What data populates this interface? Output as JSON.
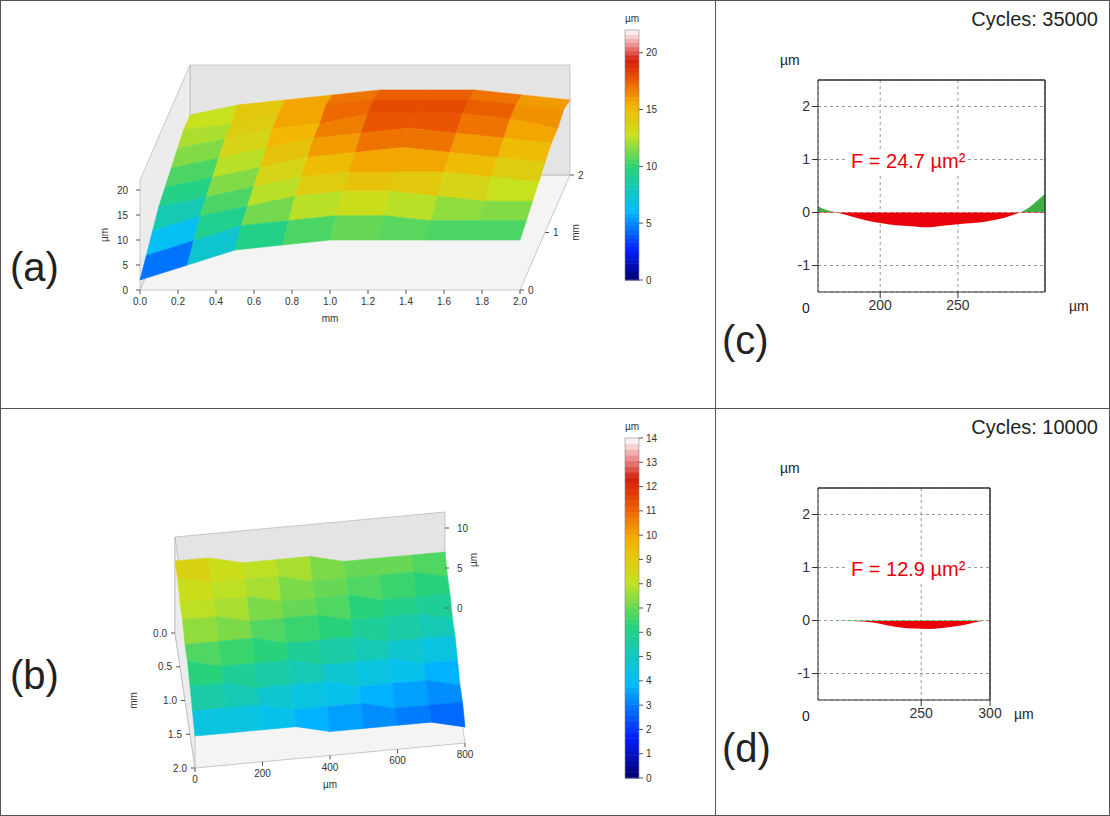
{
  "chart_data": [
    {
      "type": "surface",
      "panel": "(a)",
      "x_label": "mm",
      "y_label": "mm",
      "z_label": "µm",
      "x": [
        0,
        0.25,
        0.5,
        0.75,
        1,
        1.25,
        1.5,
        1.75,
        2
      ],
      "y": [
        0,
        0.25,
        0.5,
        0.75,
        1,
        1.25,
        1.5,
        1.75,
        2
      ],
      "cells": [
        [
          2,
          5,
          8,
          9,
          10,
          10,
          10,
          10,
          10
        ],
        [
          4,
          7,
          10,
          11,
          12,
          12,
          11,
          11,
          11
        ],
        [
          6,
          9,
          11,
          13,
          14,
          14,
          13,
          12,
          12
        ],
        [
          8,
          10,
          12,
          14,
          15,
          15,
          15,
          14,
          13
        ],
        [
          9,
          11,
          13,
          15,
          16,
          17,
          16,
          15,
          14
        ],
        [
          10,
          12,
          14,
          16,
          17,
          18,
          17,
          16,
          15
        ],
        [
          11,
          13,
          15,
          16,
          18,
          18,
          18,
          17,
          15
        ],
        [
          12,
          13,
          15,
          17,
          18,
          18,
          18,
          17,
          16
        ],
        [
          12,
          14,
          15,
          16,
          17,
          17,
          17,
          16,
          15
        ]
      ],
      "xlim": [
        0,
        2
      ],
      "xticks": [
        {
          "value": 0,
          "label": "0.0"
        },
        0.2,
        0.4,
        0.6,
        0.8,
        {
          "value": 1,
          "label": "1.0"
        },
        1.2,
        1.4,
        1.6,
        1.8,
        {
          "value": 2,
          "label": "2.0"
        }
      ],
      "ylim": [
        0,
        2
      ],
      "yticks": [
        0,
        1,
        2
      ],
      "zlim": [
        0,
        22
      ],
      "zticks": [
        0,
        5,
        10,
        15,
        20
      ],
      "colorbar": {
        "label": "µm",
        "range": [
          0,
          22
        ],
        "ticks": [
          0,
          5,
          10,
          15,
          20
        ]
      }
    },
    {
      "type": "surface",
      "panel": "(b)",
      "x_label": "µm",
      "y_label": "mm",
      "z_label": "µm",
      "x": [
        0,
        100,
        200,
        300,
        400,
        500,
        600,
        700,
        800
      ],
      "y": [
        0,
        0.25,
        0.5,
        0.75,
        1,
        1.25,
        1.5,
        1.75,
        2
      ],
      "cells": [
        [
          9,
          9,
          8,
          8,
          8,
          7,
          7,
          7,
          7
        ],
        [
          9,
          8,
          8,
          8,
          7,
          7,
          7,
          7,
          6
        ],
        [
          8,
          8,
          8,
          7,
          7,
          7,
          6,
          6,
          6
        ],
        [
          8,
          8,
          7,
          7,
          7,
          6,
          6,
          6,
          5
        ],
        [
          7,
          7,
          7,
          6,
          6,
          6,
          5,
          5,
          5
        ],
        [
          7,
          6,
          6,
          6,
          5,
          5,
          5,
          4,
          4
        ],
        [
          6,
          6,
          5,
          5,
          5,
          4,
          4,
          4,
          3
        ],
        [
          5,
          5,
          5,
          4,
          4,
          4,
          3,
          3,
          3
        ],
        [
          4,
          4,
          4,
          4,
          3,
          3,
          3,
          3,
          2
        ]
      ],
      "xlim": [
        0,
        800
      ],
      "xticks": [
        0,
        200,
        400,
        600,
        800
      ],
      "ylim": [
        0,
        2
      ],
      "yticks": [
        {
          "value": 0,
          "label": "0.0"
        },
        0.5,
        {
          "value": 1,
          "label": "1.0"
        },
        1.5,
        {
          "value": 2,
          "label": "2.0"
        }
      ],
      "zlim": [
        0,
        12
      ],
      "zticks": [
        0,
        5,
        10
      ],
      "colorbar": {
        "label": "µm",
        "range": [
          0,
          14
        ],
        "ticks": [
          0,
          1,
          2,
          3,
          4,
          5,
          6,
          7,
          8,
          9,
          10,
          11,
          12,
          13,
          14
        ]
      }
    },
    {
      "type": "area",
      "panel": "(c)",
      "title": "Cycles: 35000",
      "x_label": "µm",
      "y_label": "µm",
      "x_origin_label": "0",
      "annotations": [
        "F = 24.7 µm²"
      ],
      "x": [
        160,
        165,
        172,
        180,
        190,
        200,
        210,
        220,
        230,
        240,
        250,
        260,
        270,
        280,
        288,
        295,
        300,
        306
      ],
      "values": [
        0.12,
        0.05,
        0.0,
        -0.06,
        -0.14,
        -0.2,
        -0.24,
        -0.26,
        -0.28,
        -0.25,
        -0.22,
        -0.2,
        -0.16,
        -0.1,
        -0.02,
        0.08,
        0.2,
        0.35
      ],
      "xlim": [
        160,
        306
      ],
      "xticks": [
        200,
        250
      ],
      "ylim": [
        -1.5,
        2.5
      ],
      "yticks": [
        -1,
        0,
        1,
        2
      ],
      "grid": true,
      "colors": [
        "#e8000b",
        "#3cb043"
      ]
    },
    {
      "type": "area",
      "panel": "(d)",
      "title": "Cycles: 10000",
      "x_label": "µm",
      "y_label": "µm",
      "x_origin_label": "0",
      "annotations": [
        "F = 12.9 µm²"
      ],
      "x": [
        175,
        185,
        200,
        215,
        225,
        235,
        245,
        255,
        265,
        275,
        285,
        292,
        300
      ],
      "values": [
        0.0,
        0.0,
        -0.01,
        -0.04,
        -0.09,
        -0.13,
        -0.15,
        -0.16,
        -0.14,
        -0.11,
        -0.06,
        -0.02,
        0.01
      ],
      "xlim": [
        175,
        300
      ],
      "xticks": [
        250,
        300
      ],
      "ylim": [
        -1.5,
        2.5
      ],
      "yticks": [
        -1,
        0,
        1,
        2
      ],
      "grid": true,
      "colors": [
        "#e8000b",
        "#3cb043"
      ]
    }
  ]
}
